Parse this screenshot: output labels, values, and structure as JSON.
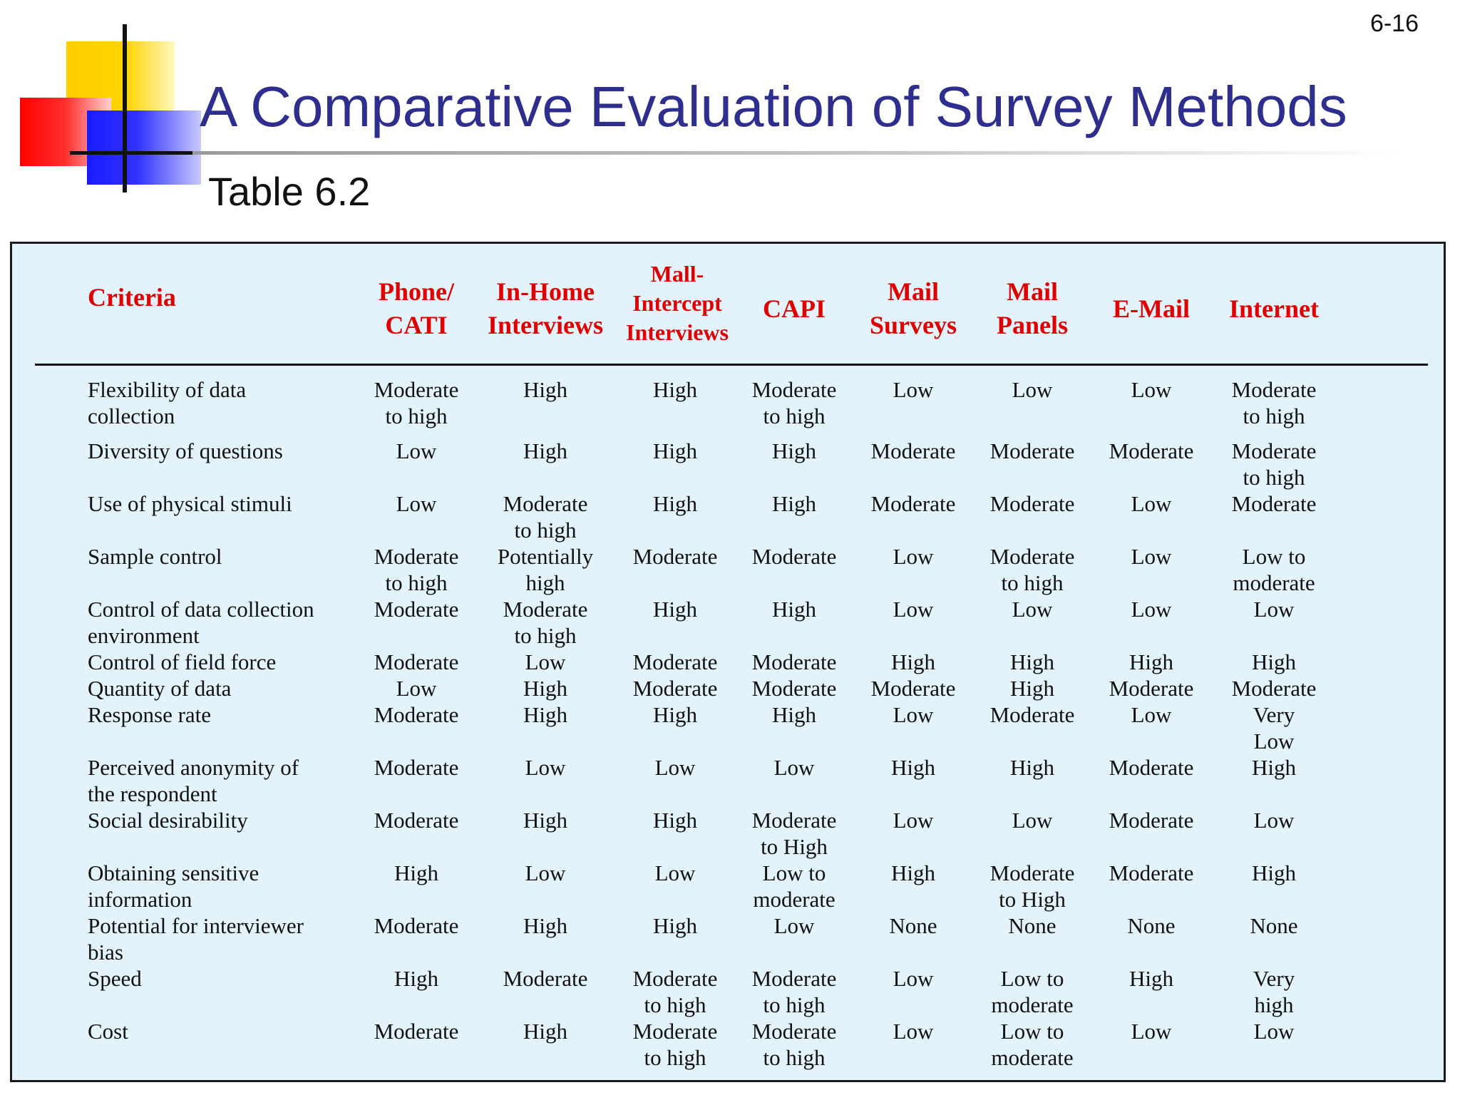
{
  "slide_number": "6-16",
  "title": "A Comparative Evaluation of Survey Methods",
  "subtitle": "Table 6.2",
  "colors": {
    "title": "#2e2e8f",
    "header_text": "#e00000",
    "table_background": "#e3f3fc"
  },
  "table": {
    "headers": [
      "Criteria",
      "Phone/\nCATI",
      "In-Home\nInterviews",
      "Mall-\nIntercept\nInterviews",
      "CAPI",
      "Mail\nSurveys",
      "Mail\nPanels",
      "E-Mail",
      "Internet"
    ],
    "rows": [
      [
        "Flexibility of data\ncollection",
        "Moderate\nto high",
        "High",
        "High",
        "Moderate\nto high",
        "Low",
        "Low",
        "Low",
        "Moderate\nto high"
      ],
      [
        "Diversity of questions",
        "Low",
        "High",
        "High",
        "High",
        "Moderate",
        "Moderate",
        "Moderate",
        "Moderate\nto high"
      ],
      [
        "Use of physical stimuli",
        "Low",
        "Moderate\nto high",
        "High",
        "High",
        "Moderate",
        "Moderate",
        "Low",
        "Moderate"
      ],
      [
        "Sample control",
        "Moderate\nto high",
        "Potentially\nhigh",
        "Moderate",
        "Moderate",
        "Low",
        "Moderate\nto high",
        "Low",
        "Low to\nmoderate"
      ],
      [
        "Control of data collection\nenvironment",
        "Moderate",
        "Moderate\nto high",
        "High",
        "High",
        "Low",
        "Low",
        "Low",
        "Low"
      ],
      [
        "Control of field force",
        "Moderate",
        "Low",
        "Moderate",
        "Moderate",
        "High",
        "High",
        "High",
        "High"
      ],
      [
        "Quantity of data",
        "Low",
        "High",
        "Moderate",
        "Moderate",
        "Moderate",
        "High",
        "Moderate",
        "Moderate"
      ],
      [
        "Response rate",
        "Moderate",
        "High",
        "High",
        "High",
        "Low",
        "Moderate",
        "Low",
        "Very\nLow"
      ],
      [
        "Perceived anonymity of\nthe respondent",
        "Moderate",
        "Low",
        "Low",
        "Low",
        "High",
        "High",
        "Moderate",
        "High"
      ],
      [
        "Social desirability",
        "Moderate",
        "High",
        "High",
        "Moderate\nto High",
        "Low",
        "Low",
        "Moderate",
        "Low"
      ],
      [
        "Obtaining sensitive\ninformation",
        "High",
        "Low",
        "Low",
        "Low to\nmoderate",
        "High",
        "Moderate\nto High",
        "Moderate",
        "High"
      ],
      [
        "Potential for interviewer\nbias",
        "Moderate",
        "High",
        "High",
        "Low",
        "None",
        "None",
        "None",
        "None"
      ],
      [
        "Speed",
        "High",
        "Moderate",
        "Moderate\nto high",
        "Moderate\nto high",
        "Low",
        "Low to\nmoderate",
        "High",
        "Very\nhigh"
      ],
      [
        "Cost",
        "Moderate",
        "High",
        "Moderate\nto high",
        "Moderate\nto high",
        "Low",
        "Low to\nmoderate",
        "Low",
        "Low"
      ]
    ]
  }
}
